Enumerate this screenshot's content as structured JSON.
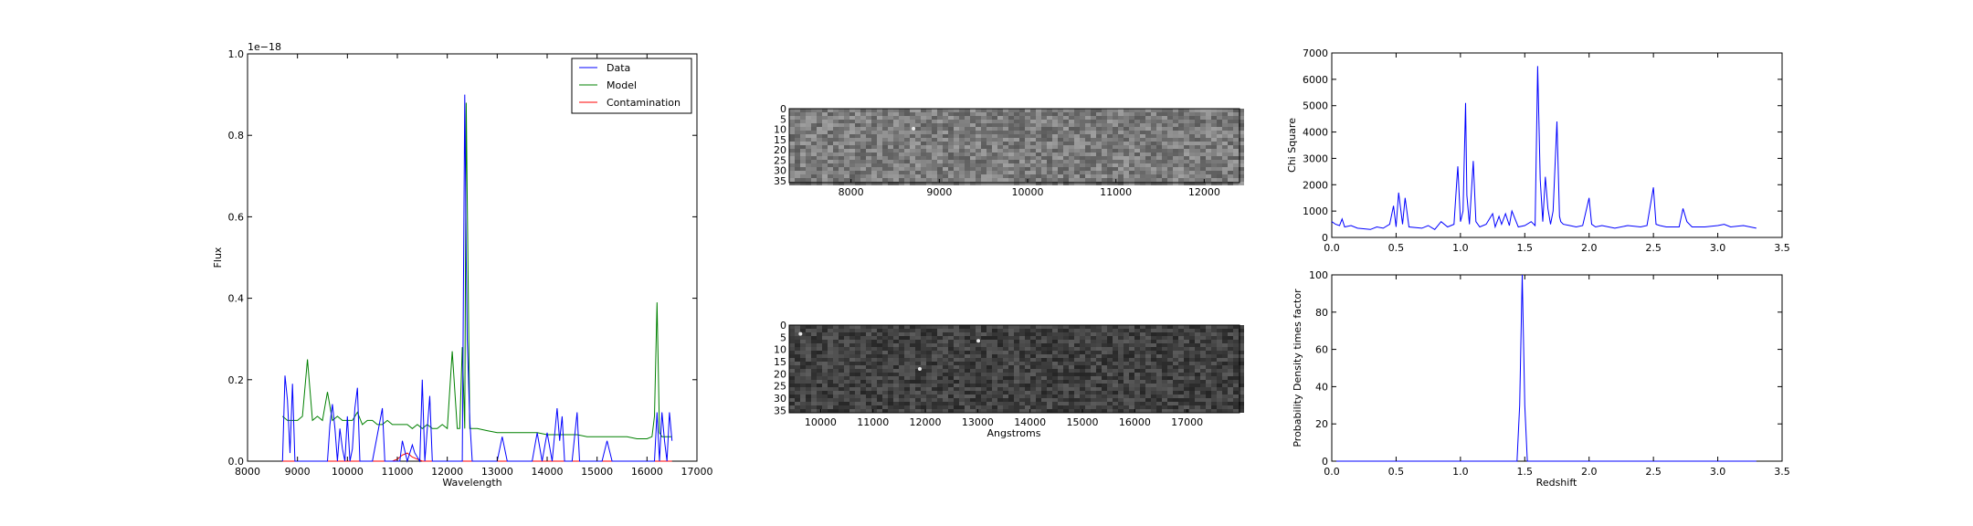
{
  "colors": {
    "data": "#0000ff",
    "model": "#008000",
    "contamination": "#ff0000",
    "axes": "#000000"
  },
  "spectrum_panel": {
    "xlabel": "Wavelength",
    "ylabel": "Flux",
    "offset_label": "1e−18"
  },
  "stamp_panel_upper": {
    "xlabel": ""
  },
  "stamp_panel_lower": {
    "xlabel": "Angstroms"
  },
  "chisq_panel": {
    "xlabel": "",
    "ylabel": "Chi Square"
  },
  "pdf_panel": {
    "xlabel": "Redshift",
    "ylabel": "Probability Density times factor"
  },
  "chart_data": [
    {
      "type": "line",
      "title": "",
      "xlabel": "Wavelength",
      "ylabel": "Flux",
      "xlim": [
        8000,
        17000
      ],
      "ylim": [
        0,
        1.0
      ],
      "y_scale_note": "1e−18",
      "xticks": [
        "8000",
        "9000",
        "10000",
        "11000",
        "12000",
        "13000",
        "14000",
        "15000",
        "16000",
        "17000"
      ],
      "yticks": [
        "0.0",
        "0.2",
        "0.4",
        "0.6",
        "0.8",
        "1.0"
      ],
      "legend_position": "top-right",
      "series": [
        {
          "name": "Data",
          "x": [
            8700,
            8750,
            8800,
            8850,
            8900,
            8950,
            9000,
            9100,
            9300,
            9600,
            9650,
            9700,
            9750,
            9800,
            9850,
            9900,
            9950,
            10000,
            10050,
            10100,
            10150,
            10200,
            10250,
            10300,
            10500,
            10700,
            10750,
            10800,
            10900,
            11050,
            11100,
            11200,
            11300,
            11350,
            11450,
            11500,
            11550,
            11650,
            11700,
            11750,
            12000,
            12300,
            12350,
            12380,
            12400,
            12450,
            12500,
            13000,
            13100,
            13200,
            13700,
            13800,
            13900,
            14000,
            14100,
            14200,
            14250,
            14300,
            14350,
            14400,
            14500,
            14600,
            14650,
            14700,
            14800,
            15000,
            15100,
            15200,
            15300,
            15500,
            16000,
            16150,
            16200,
            16250,
            16300,
            16350,
            16400,
            16450,
            16500
          ],
          "values": [
            0.0,
            0.21,
            0.15,
            0.02,
            0.19,
            0.0,
            0.0,
            0.0,
            0.0,
            0.0,
            0.09,
            0.14,
            0.08,
            0.0,
            0.08,
            0.03,
            0.0,
            0.11,
            0.0,
            0.03,
            0.13,
            0.18,
            0.0,
            0.0,
            0.0,
            0.13,
            0.0,
            0.0,
            0.0,
            0.0,
            0.05,
            0.0,
            0.04,
            0.02,
            0.0,
            0.2,
            0.0,
            0.16,
            0.0,
            0.0,
            0.0,
            0.0,
            0.9,
            0.5,
            0.3,
            0.1,
            0.0,
            0.0,
            0.06,
            0.0,
            0.0,
            0.07,
            0.0,
            0.07,
            0.0,
            0.13,
            0.05,
            0.11,
            0.0,
            0.0,
            0.0,
            0.12,
            0.0,
            0.0,
            0.0,
            0.0,
            0.0,
            0.05,
            0.0,
            0.0,
            0.0,
            0.0,
            0.12,
            0.0,
            0.12,
            0.05,
            0.0,
            0.12,
            0.05
          ]
        },
        {
          "name": "Model",
          "x": [
            8700,
            8800,
            8900,
            9000,
            9100,
            9200,
            9300,
            9400,
            9500,
            9600,
            9700,
            9800,
            9900,
            10000,
            10100,
            10200,
            10300,
            10400,
            10500,
            10600,
            10700,
            10800,
            10900,
            11000,
            11100,
            11200,
            11300,
            11400,
            11500,
            11600,
            11700,
            11800,
            11900,
            12000,
            12100,
            12200,
            12250,
            12300,
            12350,
            12380,
            12400,
            12450,
            12500,
            12600,
            12800,
            13000,
            13200,
            13400,
            13600,
            13800,
            14000,
            14200,
            14400,
            14600,
            14800,
            15000,
            15200,
            15400,
            15600,
            15800,
            16000,
            16100,
            16150,
            16200,
            16250,
            16300,
            16400,
            16500
          ],
          "values": [
            0.11,
            0.1,
            0.1,
            0.1,
            0.11,
            0.25,
            0.1,
            0.11,
            0.1,
            0.17,
            0.1,
            0.11,
            0.1,
            0.1,
            0.1,
            0.12,
            0.09,
            0.1,
            0.1,
            0.09,
            0.09,
            0.1,
            0.09,
            0.09,
            0.09,
            0.09,
            0.08,
            0.09,
            0.08,
            0.09,
            0.08,
            0.08,
            0.09,
            0.08,
            0.27,
            0.08,
            0.08,
            0.28,
            0.08,
            0.88,
            0.65,
            0.08,
            0.08,
            0.08,
            0.075,
            0.07,
            0.07,
            0.07,
            0.07,
            0.07,
            0.065,
            0.065,
            0.065,
            0.065,
            0.06,
            0.06,
            0.06,
            0.06,
            0.06,
            0.055,
            0.055,
            0.06,
            0.11,
            0.39,
            0.07,
            0.06,
            0.06,
            0.06
          ]
        },
        {
          "name": "Contamination",
          "x": [
            8700,
            10900,
            11000,
            11100,
            11200,
            11300,
            11400,
            11500,
            11600,
            16500
          ],
          "values": [
            0.0,
            0.0,
            0.005,
            0.015,
            0.02,
            0.01,
            0.005,
            0.0,
            0.0,
            0.0
          ]
        }
      ]
    },
    {
      "type": "heatmap",
      "title": "",
      "xlabel": "",
      "xlim": [
        7300,
        12400
      ],
      "xticks": [
        "8000",
        "9000",
        "10000",
        "11000",
        "12000"
      ],
      "yticks": [
        "0",
        "5",
        "10",
        "15",
        "20",
        "25",
        "30",
        "35"
      ],
      "ylim": [
        36,
        0
      ]
    },
    {
      "type": "heatmap",
      "title": "",
      "xlabel": "Angstroms",
      "xlim": [
        9400,
        18000
      ],
      "xticks": [
        "10000",
        "11000",
        "12000",
        "13000",
        "14000",
        "15000",
        "16000",
        "17000"
      ],
      "yticks": [
        "0",
        "5",
        "10",
        "15",
        "20",
        "25",
        "30",
        "35"
      ],
      "ylim": [
        36,
        0
      ]
    },
    {
      "type": "line",
      "title": "",
      "xlabel": "",
      "ylabel": "Chi Square",
      "xlim": [
        0.0,
        3.5
      ],
      "ylim": [
        0,
        7000
      ],
      "xticks": [
        "0.0",
        "0.5",
        "1.0",
        "1.5",
        "2.0",
        "2.5",
        "3.0",
        "3.5"
      ],
      "yticks": [
        "0",
        "1000",
        "2000",
        "3000",
        "4000",
        "5000",
        "6000",
        "7000"
      ],
      "series": [
        {
          "x": [
            0.0,
            0.03,
            0.06,
            0.08,
            0.1,
            0.15,
            0.2,
            0.3,
            0.35,
            0.4,
            0.45,
            0.48,
            0.5,
            0.52,
            0.55,
            0.57,
            0.6,
            0.7,
            0.75,
            0.8,
            0.85,
            0.9,
            0.95,
            0.97,
            0.98,
            1.0,
            1.02,
            1.04,
            1.05,
            1.07,
            1.1,
            1.12,
            1.15,
            1.2,
            1.25,
            1.27,
            1.3,
            1.32,
            1.35,
            1.38,
            1.4,
            1.45,
            1.5,
            1.55,
            1.58,
            1.6,
            1.62,
            1.64,
            1.66,
            1.68,
            1.7,
            1.72,
            1.75,
            1.77,
            1.78,
            1.8,
            1.85,
            1.9,
            1.95,
            2.0,
            2.02,
            2.05,
            2.1,
            2.2,
            2.3,
            2.4,
            2.45,
            2.5,
            2.52,
            2.55,
            2.6,
            2.7,
            2.73,
            2.76,
            2.8,
            2.9,
            3.0,
            3.05,
            3.1,
            3.2,
            3.3
          ],
          "values": [
            600,
            500,
            450,
            700,
            400,
            450,
            350,
            300,
            400,
            350,
            500,
            1200,
            400,
            1700,
            500,
            1500,
            400,
            350,
            450,
            300,
            600,
            400,
            500,
            2000,
            2700,
            600,
            1000,
            5100,
            1600,
            500,
            2900,
            600,
            400,
            500,
            900,
            400,
            800,
            500,
            900,
            450,
            1000,
            400,
            450,
            600,
            450,
            6500,
            2200,
            600,
            2300,
            1100,
            500,
            1000,
            4400,
            800,
            600,
            500,
            450,
            400,
            450,
            1500,
            500,
            400,
            450,
            350,
            450,
            400,
            450,
            1900,
            500,
            450,
            400,
            400,
            1100,
            600,
            400,
            400,
            450,
            500,
            400,
            450,
            350
          ]
        }
      ]
    },
    {
      "type": "line",
      "title": "",
      "xlabel": "Redshift",
      "ylabel": "Probability Density times factor",
      "xlim": [
        0.0,
        3.5
      ],
      "ylim": [
        0,
        100
      ],
      "xticks": [
        "0.0",
        "0.5",
        "1.0",
        "1.5",
        "2.0",
        "2.5",
        "3.0",
        "3.5"
      ],
      "yticks": [
        "0",
        "20",
        "40",
        "60",
        "80",
        "100"
      ],
      "series": [
        {
          "x": [
            0.0,
            1.44,
            1.46,
            1.48,
            1.5,
            1.52,
            3.3
          ],
          "values": [
            0,
            0,
            30,
            100,
            30,
            0,
            0
          ]
        }
      ]
    }
  ]
}
